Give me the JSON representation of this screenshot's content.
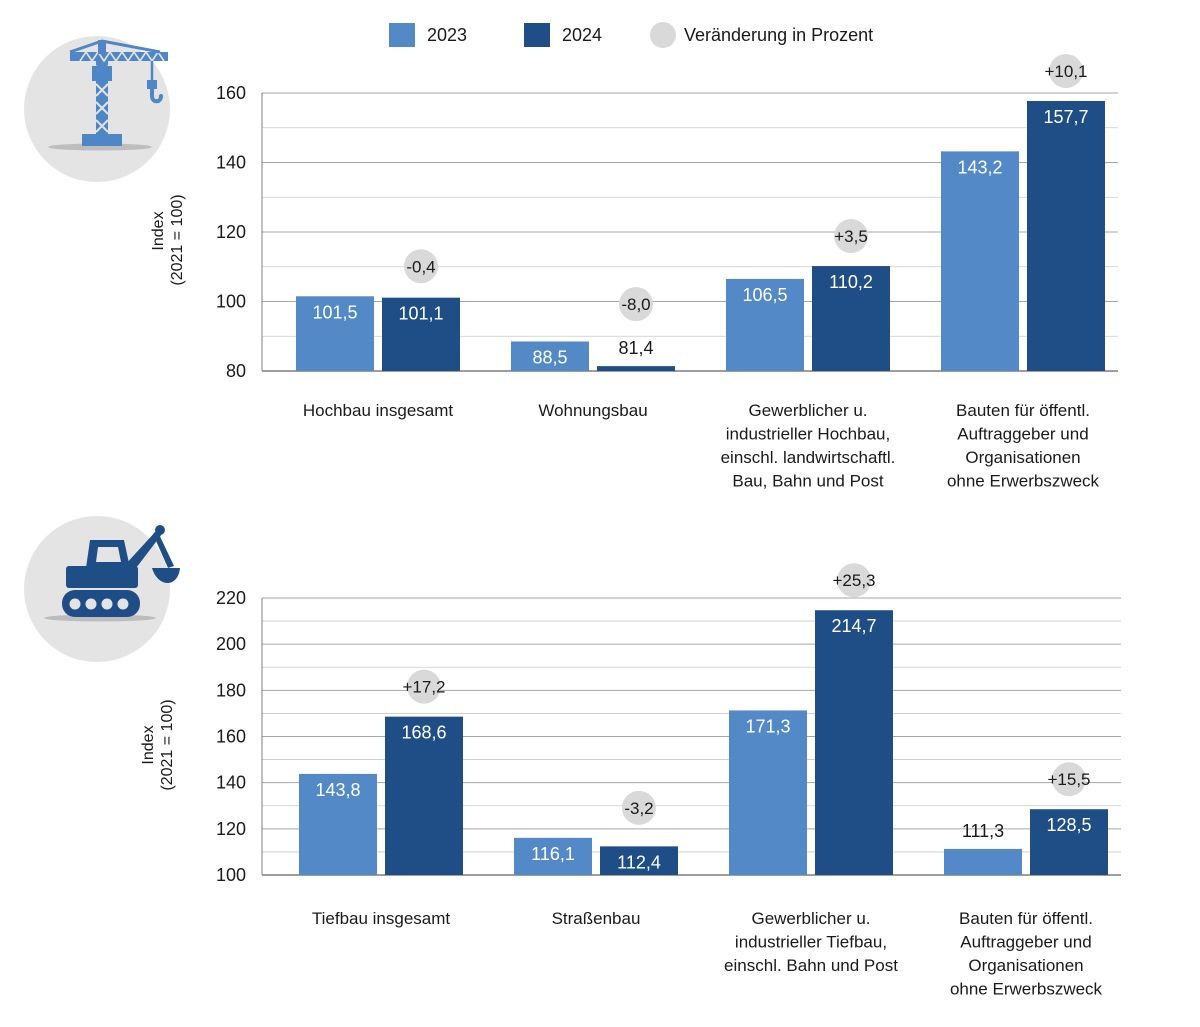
{
  "legend": {
    "series_2023": "2023",
    "series_2024": "2024",
    "change": "Veränderung in Prozent"
  },
  "colors": {
    "series_2023": "#5289c6",
    "series_2024": "#1f4e87",
    "change_bubble": "#d9d9d9",
    "grid": "#a6a6a6",
    "icon_hochbau": "#4f86c6",
    "icon_tiefbau": "#1f4e87",
    "icon_circle": "#e4e4e4"
  },
  "icons": {
    "top": "crane-icon",
    "bottom": "excavator-icon"
  },
  "chart_data": [
    {
      "type": "bar",
      "title": "Hochbau",
      "ylabel_line1": "Index",
      "ylabel_line2": "(2021 = 100)",
      "ylim": [
        80,
        160
      ],
      "yticks": [
        80,
        100,
        120,
        140,
        160
      ],
      "categories": [
        [
          "Hochbau insgesamt"
        ],
        [
          "Wohnungsbau"
        ],
        [
          "Gewerblicher u.",
          "industrieller Hochbau,",
          "einschl. landwirtschaftl.",
          "Bau, Bahn und Post"
        ],
        [
          "Bauten für öffentl.",
          "Auftraggeber und",
          "Organisationen",
          "ohne Erwerbszweck"
        ]
      ],
      "series": [
        {
          "name": "2023",
          "values": [
            101.5,
            88.5,
            106.5,
            143.2
          ],
          "labels": [
            "101,5",
            "88,5",
            "106,5",
            "143,2"
          ]
        },
        {
          "name": "2024",
          "values": [
            101.1,
            81.4,
            110.2,
            157.7
          ],
          "labels": [
            "101,1",
            "81,4",
            "110,2",
            "157,7"
          ]
        }
      ],
      "changes": [
        "-0,4",
        "-8,0",
        "+3,5",
        "+10,1"
      ]
    },
    {
      "type": "bar",
      "title": "Tiefbau",
      "ylabel_line1": "Index",
      "ylabel_line2": "(2021 = 100)",
      "ylim": [
        100,
        220
      ],
      "yticks": [
        100,
        120,
        140,
        160,
        180,
        200,
        220
      ],
      "categories": [
        [
          "Tiefbau insgesamt"
        ],
        [
          "Straßenbau"
        ],
        [
          "Gewerblicher u.",
          "industrieller Tiefbau,",
          "einschl. Bahn und Post"
        ],
        [
          "Bauten für öffentl.",
          "Auftraggeber und",
          "Organisationen",
          "ohne Erwerbszweck"
        ]
      ],
      "series": [
        {
          "name": "2023",
          "values": [
            143.8,
            116.1,
            171.3,
            111.3
          ],
          "labels": [
            "143,8",
            "116,1",
            "171,3",
            "111,3"
          ]
        },
        {
          "name": "2024",
          "values": [
            168.6,
            112.4,
            214.7,
            128.5
          ],
          "labels": [
            "168,6",
            "112,4",
            "214,7",
            "128,5"
          ]
        }
      ],
      "changes": [
        "+17,2",
        "-3,2",
        "+25,3",
        "+15,5"
      ]
    }
  ]
}
